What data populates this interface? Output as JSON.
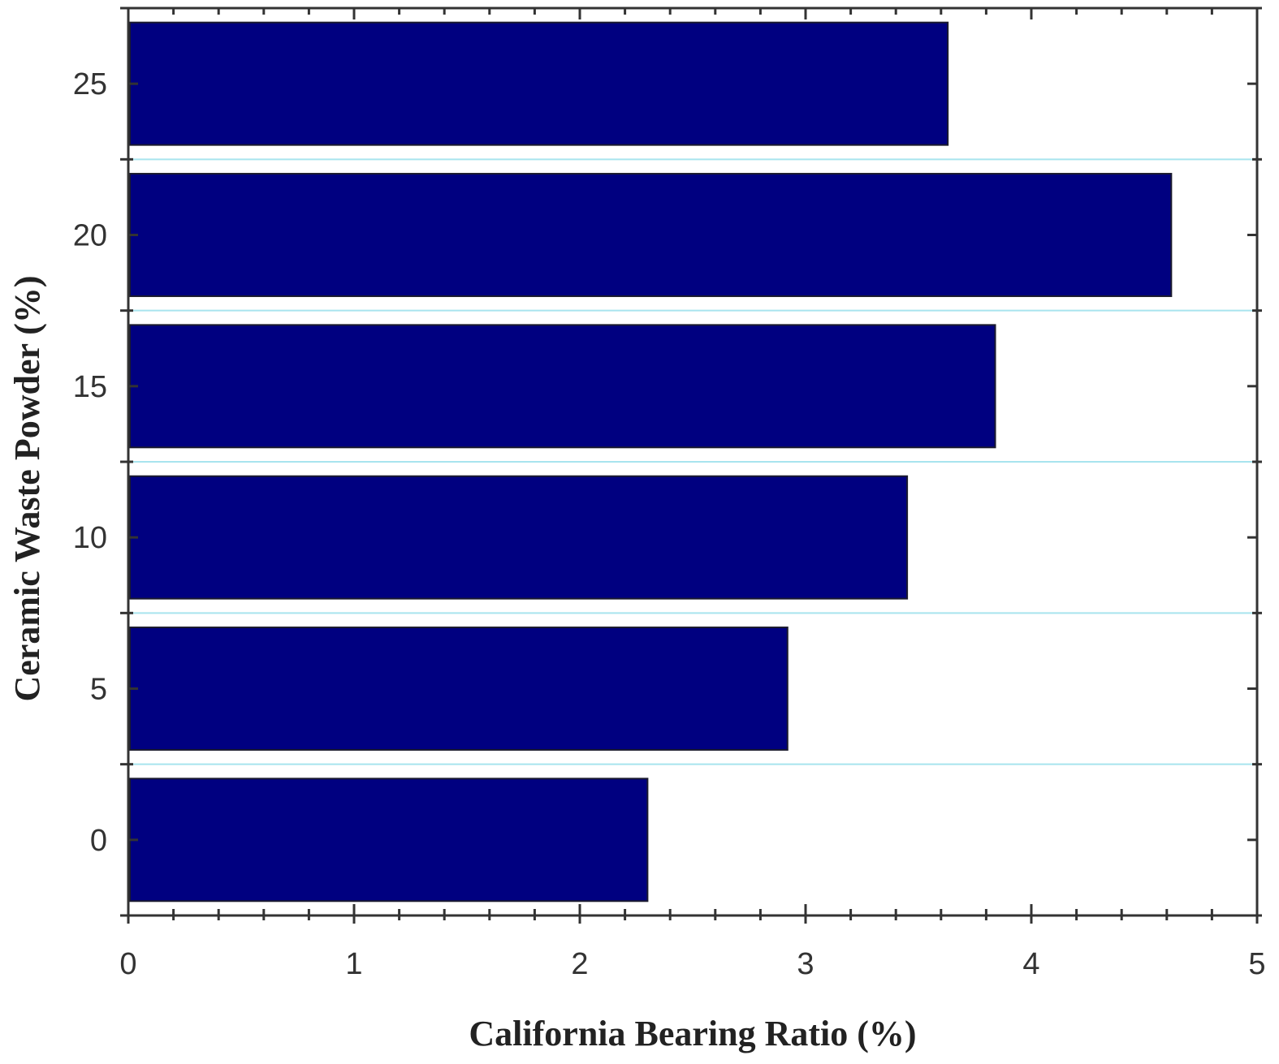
{
  "chart_data": {
    "type": "bar",
    "orientation": "horizontal",
    "categories": [
      "0",
      "5",
      "10",
      "15",
      "20",
      "25"
    ],
    "values": [
      2.3,
      2.92,
      3.45,
      3.84,
      4.62,
      3.63
    ],
    "xlabel": "California Bearing Ratio (%)",
    "ylabel": "Ceramic Waste Powder (%)",
    "xlim": [
      0,
      5
    ],
    "xticks": [
      "0",
      "1",
      "2",
      "3",
      "4",
      "5"
    ],
    "grid": false,
    "bar_color": "#000080",
    "separator_color": "#a8e4ee"
  }
}
